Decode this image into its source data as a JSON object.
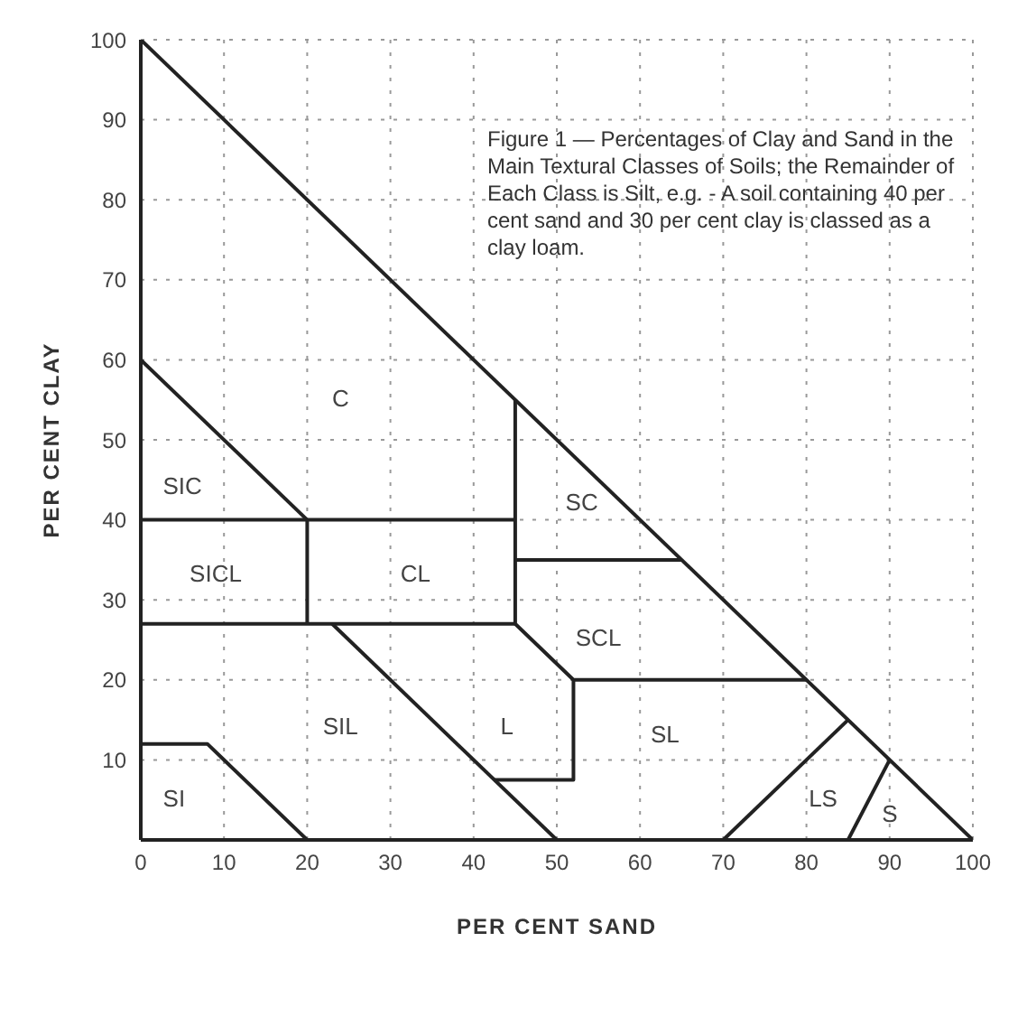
{
  "chart_data": {
    "type": "line",
    "xlabel": "PER CENT SAND",
    "ylabel": "PER CENT CLAY",
    "xlim": [
      0,
      100
    ],
    "ylim": [
      0,
      100
    ],
    "xticks": [
      0,
      10,
      20,
      30,
      40,
      50,
      60,
      70,
      80,
      90,
      100
    ],
    "yticks": [
      10,
      20,
      30,
      40,
      50,
      60,
      70,
      80,
      90,
      100
    ],
    "grid": true,
    "marker": "none",
    "line_style": "solid",
    "series": [
      {
        "color": "#222222",
        "x": [
          0,
          100
        ],
        "values": [
          100,
          0
        ]
      },
      {
        "color": "#222222",
        "x": [
          0,
          20
        ],
        "values": [
          60,
          40
        ]
      },
      {
        "color": "#222222",
        "x": [
          0,
          45
        ],
        "values": [
          40,
          40
        ]
      },
      {
        "color": "#222222",
        "x": [
          20,
          20
        ],
        "values": [
          40,
          27
        ]
      },
      {
        "color": "#222222",
        "x": [
          0,
          45
        ],
        "values": [
          27,
          27
        ]
      },
      {
        "color": "#222222",
        "x": [
          45,
          45,
          52,
          80
        ],
        "values": [
          55,
          27,
          20,
          20
        ]
      },
      {
        "color": "#222222",
        "x": [
          45,
          65
        ],
        "values": [
          35,
          35
        ]
      },
      {
        "color": "#222222",
        "x": [
          23,
          50
        ],
        "values": [
          27,
          0
        ]
      },
      {
        "color": "#222222",
        "x": [
          42.5,
          52,
          52
        ],
        "values": [
          7.5,
          7.5,
          20
        ]
      },
      {
        "color": "#222222",
        "x": [
          0,
          8,
          20
        ],
        "values": [
          12,
          12,
          0
        ]
      },
      {
        "color": "#222222",
        "x": [
          70,
          85
        ],
        "values": [
          0,
          15
        ]
      },
      {
        "color": "#222222",
        "x": [
          85,
          90
        ],
        "values": [
          0,
          10
        ]
      }
    ],
    "annotations": [
      "Figure 1 — Percentages of Clay and Sand in the Main Textural Classes of Soils; the Remainder of Each Class is Silt, e.g. - A soil containing 40 per cent sand and 30 per cent clay is classed as a clay loam.",
      "C",
      "SIC",
      "SICL",
      "CL",
      "SC",
      "SCL",
      "SIL",
      "L",
      "SL",
      "SI",
      "LS",
      "S"
    ]
  }
}
